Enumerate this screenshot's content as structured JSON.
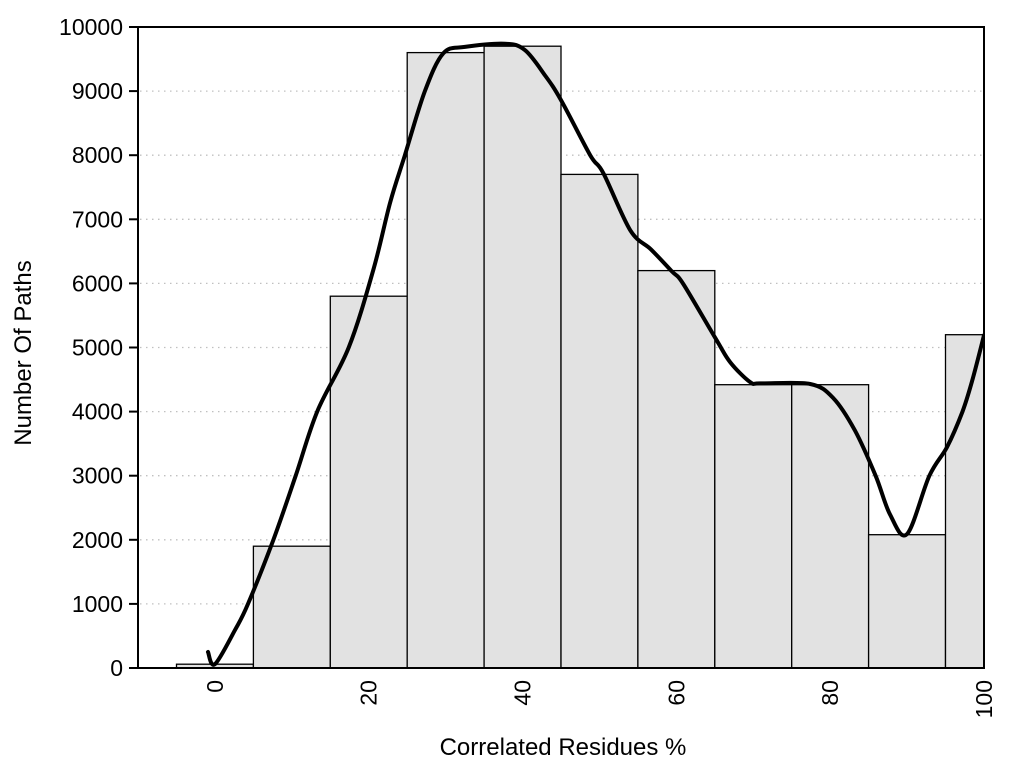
{
  "chart_data": {
    "type": "bar",
    "title": "",
    "xlabel": "Correlated Residues %",
    "ylabel": "Number Of Paths",
    "xlim": [
      -10,
      100
    ],
    "ylim": [
      0,
      10000
    ],
    "x_tick_values": [
      0,
      20,
      40,
      60,
      80,
      100
    ],
    "x_tick_labels": [
      "0",
      "20",
      "40",
      "60",
      "80",
      "100"
    ],
    "y_tick_values": [
      0,
      1000,
      2000,
      3000,
      4000,
      5000,
      6000,
      7000,
      8000,
      9000,
      10000
    ],
    "y_tick_labels": [
      "0",
      "1000",
      "2000",
      "3000",
      "4000",
      "5000",
      "6000",
      "7000",
      "8000",
      "9000",
      "10000"
    ],
    "grid": {
      "horizontal": true,
      "vertical": false,
      "style": "dotted",
      "color": "#c0c0c0"
    },
    "legend": "none",
    "bin_width": 10,
    "categories": [
      0,
      10,
      20,
      30,
      40,
      50,
      60,
      70,
      80,
      90,
      100
    ],
    "values": [
      60,
      1900,
      5800,
      9600,
      9700,
      7700,
      6200,
      4420,
      4420,
      2080,
      5200
    ],
    "series": [
      {
        "name": "histogram",
        "type": "bar",
        "fill": "#e2e2e2",
        "stroke": "#000000"
      },
      {
        "name": "smoothed-density-curve",
        "type": "line",
        "color": "#000000",
        "width": 4,
        "points": [
          [
            -0.9,
            250
          ],
          [
            0.0,
            60
          ],
          [
            2.6,
            590
          ],
          [
            4.3,
            1000
          ],
          [
            7.6,
            2000
          ],
          [
            10.5,
            3000
          ],
          [
            13.3,
            4000
          ],
          [
            17.4,
            5000
          ],
          [
            20.6,
            6210
          ],
          [
            22.8,
            7270
          ],
          [
            24.7,
            8000
          ],
          [
            27.3,
            9000
          ],
          [
            29.7,
            9590
          ],
          [
            32.5,
            9690
          ],
          [
            37.7,
            9740
          ],
          [
            40.3,
            9640
          ],
          [
            42.9,
            9250
          ],
          [
            45.0,
            8860
          ],
          [
            48.8,
            8000
          ],
          [
            50.5,
            7720
          ],
          [
            54.0,
            6830
          ],
          [
            56.7,
            6530
          ],
          [
            59.4,
            6190
          ],
          [
            60.9,
            5990
          ],
          [
            65.2,
            5120
          ],
          [
            67.0,
            4770
          ],
          [
            69.6,
            4460
          ],
          [
            71.0,
            4440
          ],
          [
            77.4,
            4430
          ],
          [
            80.4,
            4210
          ],
          [
            83.2,
            3710
          ],
          [
            85.9,
            3000
          ],
          [
            87.8,
            2390
          ],
          [
            90.0,
            2090
          ],
          [
            92.9,
            3000
          ],
          [
            95.2,
            3450
          ],
          [
            97.2,
            4000
          ],
          [
            98.5,
            4500
          ],
          [
            100.0,
            5190
          ]
        ]
      }
    ],
    "colors": {
      "background": "#ffffff",
      "frame": "#000000",
      "text": "#000000"
    }
  }
}
